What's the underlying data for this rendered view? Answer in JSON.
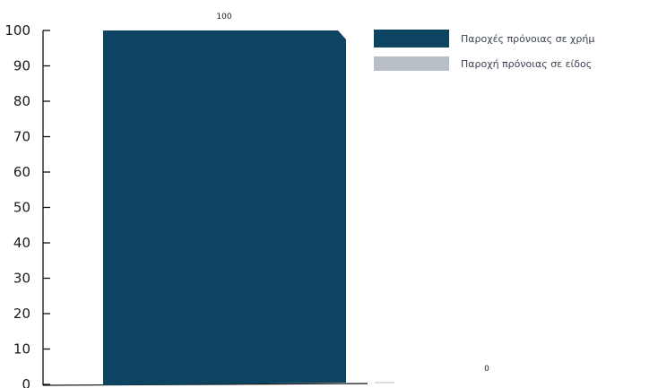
{
  "chart_data": {
    "type": "bar",
    "categories": [
      "Παροχές πρόνοιας σε χρήμα",
      "Παροχή πρόνοιας σε είδος"
    ],
    "series": [
      {
        "name": "Παροχές πρόνοιας σε χρήμ",
        "color": "#0d4462",
        "values": [
          100,
          null
        ]
      },
      {
        "name": "Παροχή πρόνοιας σε είδος",
        "color": "#b7bec5",
        "values": [
          null,
          0
        ]
      }
    ],
    "data_labels": [
      "100",
      "0"
    ],
    "yticks": [
      "0",
      "10",
      "20",
      "30",
      "40",
      "50",
      "60",
      "70",
      "80",
      "90",
      "100"
    ],
    "ylim": [
      0,
      100
    ],
    "title": "",
    "xlabel": "",
    "ylabel": "",
    "grid": false,
    "legend_position": "top-right"
  }
}
